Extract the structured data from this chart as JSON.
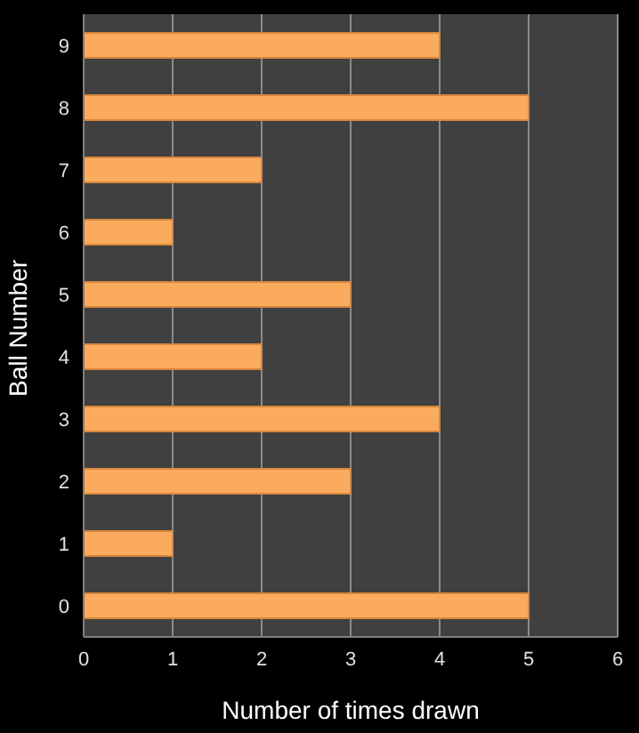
{
  "chart_data": {
    "type": "bar",
    "orientation": "horizontal",
    "xlabel": "Number  of times drawn",
    "ylabel": "Ball Number",
    "categories": [
      "9",
      "8",
      "7",
      "6",
      "5",
      "4",
      "3",
      "2",
      "1",
      "0"
    ],
    "values": [
      4,
      5,
      2,
      1,
      3,
      2,
      4,
      3,
      1,
      5
    ],
    "color": "#fbab5e",
    "xlim": [
      0,
      6
    ],
    "xticks": [
      0,
      1,
      2,
      3,
      4,
      5,
      6
    ],
    "grid": "x"
  }
}
